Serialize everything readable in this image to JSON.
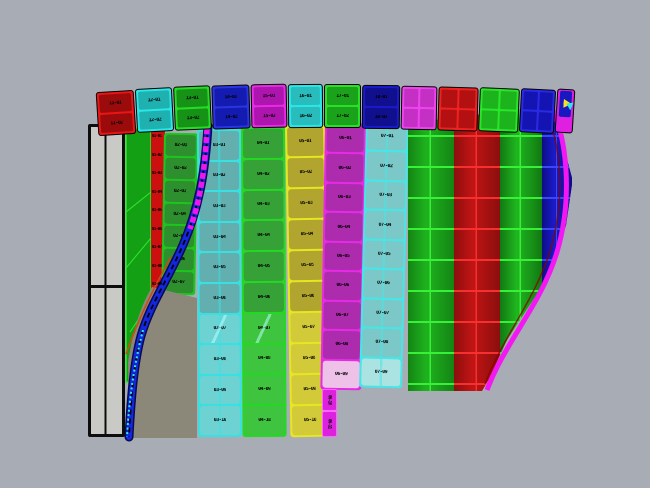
{
  "viewport": {
    "app": "3d-paneling-viewport",
    "background": "#a8adb5"
  },
  "colors": {
    "background": "#a8adb5",
    "olive_shadow": "#8b8779",
    "flat_panel_gray": "#c9c9c5",
    "outline_black": "#0d0d0d",
    "green_strip": "#14a014",
    "green_strip_edge": "#2ee62e",
    "red_strip": "#cc1010",
    "curve_blue": "#1326e0",
    "curve_dark": "#0a0a50",
    "curve_magenta": "#ee16ee",
    "curve_cyan": "#2cf0f0",
    "curve_orange": "#cf4a12",
    "rim_magenta": "#f318f3",
    "rim_dark_red": "#8b0000"
  },
  "top_band": {
    "panels": [
      {
        "color_name": "red",
        "frame": "#e81616",
        "fill": "#9c0b0b",
        "labels": [
          "11-01",
          "11-02"
        ]
      },
      {
        "color_name": "cyan",
        "frame": "#2ae6e6",
        "fill": "#1fb0b0",
        "labels": [
          "12-01",
          "12-02"
        ]
      },
      {
        "color_name": "green",
        "frame": "#26dd26",
        "fill": "#169316",
        "labels": [
          "13-01",
          "13-02"
        ]
      },
      {
        "color_name": "blue",
        "frame": "#2a35e0",
        "fill": "#141bb0",
        "labels": [
          "14-01",
          "14-02"
        ]
      },
      {
        "color_name": "magenta",
        "frame": "#e62ae6",
        "fill": "#ae14ae",
        "labels": [
          "15-01",
          "15-02"
        ]
      },
      {
        "color_name": "cyan",
        "frame": "#2ae6e6",
        "fill": "#28bcbc",
        "labels": [
          "16-01",
          "16-02"
        ]
      },
      {
        "color_name": "green",
        "frame": "#28e028",
        "fill": "#1aa31a",
        "labels": [
          "17-01",
          "17-02"
        ]
      },
      {
        "color_name": "blue-dark",
        "frame": "#1a1acc",
        "fill": "#10108e",
        "labels": [
          "18-01",
          "18-02"
        ]
      },
      {
        "color_name": "magenta",
        "type": "grid",
        "frame": "#ee44ee",
        "fill": "#c430c4"
      },
      {
        "color_name": "red",
        "type": "grid",
        "frame": "#ee2222",
        "fill": "#b31111"
      },
      {
        "color_name": "green",
        "type": "grid",
        "frame": "#2ae62a",
        "fill": "#1cb31c"
      },
      {
        "color_name": "blue",
        "type": "grid",
        "frame": "#2a2ae6",
        "fill": "#1414b3"
      },
      {
        "color_name": "magenta-curl",
        "type": "curl",
        "frame": "#e020e0",
        "fill": "#e020e0",
        "detail": {
          "blue": "#1818c0",
          "yellow": "#ffe01a",
          "cyan": "#28e8e8"
        }
      }
    ]
  },
  "main_columns": [
    {
      "id": "green-a",
      "color_name": "green",
      "frame": "#1fc41f",
      "fill": "#2e8f2e",
      "fill_bottom": "#2e8f2e",
      "bright_rows": 0,
      "labels": [
        "02-01",
        "02-02",
        "02-03",
        "02-04",
        "02-05",
        "02-06",
        "02-07"
      ]
    },
    {
      "id": "teal-b",
      "color_name": "teal",
      "frame": "#3ae0e0",
      "fill": "#63aeae",
      "fill_bottom": "#6fd2d2",
      "bright_rows": 4,
      "divider": true,
      "seam_row": 6,
      "labels": [
        "03-01",
        "03-02",
        "03-03",
        "03-04",
        "03-05",
        "03-06",
        "03-07",
        "03-08",
        "03-09",
        "03-10"
      ]
    },
    {
      "id": "green-c",
      "color_name": "green",
      "frame": "#24d824",
      "fill": "#36a136",
      "fill_bottom": "#3fc43f",
      "bright_rows": 4,
      "seam_row": 6,
      "labels": [
        "04-01",
        "04-02",
        "04-03",
        "04-04",
        "04-05",
        "04-06",
        "04-07",
        "04-08",
        "04-09",
        "04-10"
      ]
    },
    {
      "id": "yellow-d",
      "color_name": "yellow",
      "frame": "#e6e622",
      "fill": "#b1a52f",
      "fill_bottom": "#d3ca3a",
      "bright_rows": 4,
      "labels": [
        "05-01",
        "05-02",
        "05-03",
        "05-04",
        "05-05",
        "05-06",
        "05-07",
        "05-08",
        "05-09",
        "05-10"
      ]
    },
    {
      "id": "magenta-e",
      "color_name": "magenta",
      "frame": "#e62ae6",
      "fill": "#ad2cad",
      "fill_bottom": "#eec2e8",
      "bright_rows": 1,
      "labels": [
        "06-01",
        "06-02",
        "06-03",
        "06-04",
        "06-05",
        "06-06",
        "06-07",
        "06-08",
        "06-09"
      ]
    },
    {
      "id": "cyan-f",
      "color_name": "cyan",
      "frame": "#49e5e5",
      "fill": "#7cc7c7",
      "fill_bottom": "#abe3e3",
      "bright_rows": 1,
      "divider": true,
      "labels": [
        "07-01",
        "07-02",
        "07-03",
        "07-04",
        "07-05",
        "07-06",
        "07-07",
        "07-08",
        "07-09"
      ]
    }
  ],
  "red_strip": {
    "color_name": "red",
    "labels": [
      "01-01",
      "01-02",
      "01-03",
      "01-04",
      "01-05",
      "01-06",
      "01-07",
      "01-08",
      "01-09"
    ]
  },
  "right_strips": [
    {
      "color_name": "green",
      "base": "#1eb31e",
      "shade": "#148414",
      "line": "#39f039",
      "subcols": 2
    },
    {
      "color_name": "red",
      "base": "#c21414",
      "shade": "#8c0e0e",
      "line": "#f53030",
      "subcols": 2
    },
    {
      "color_name": "green",
      "base": "#1fb71f",
      "shade": "#127812",
      "line": "#39f039",
      "subcols": 2
    },
    {
      "color_name": "blue",
      "base": "#1a1ac8",
      "shade": "#0d0d86",
      "line": "#3a48f5",
      "subcols": 2
    }
  ],
  "id_tabs": [
    {
      "label": "06-10",
      "fill": "#dd22dd",
      "frame": "#ff66ff"
    },
    {
      "label": "06-11",
      "fill": "#dd22dd",
      "frame": "#ff66ff"
    }
  ]
}
